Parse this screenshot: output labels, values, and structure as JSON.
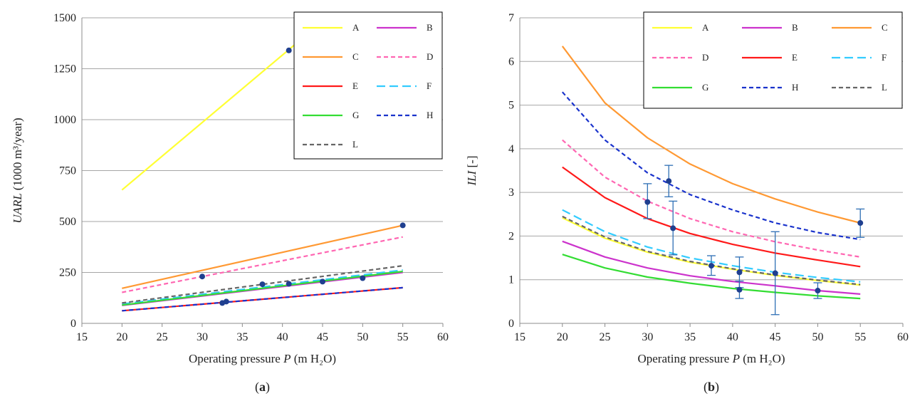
{
  "chart_data": [
    {
      "type": "line",
      "panel_label": "(a)",
      "panel_letter": "a",
      "xlabel_pre": "Operating pressure ",
      "xlabel_var": "P",
      "xlabel_post": " (m H₂O)",
      "ylabel_var": "UARL",
      "ylabel_post": "(1000 m³/year)",
      "xlim": [
        15,
        60
      ],
      "ylim": [
        0,
        1500
      ],
      "xticks": [
        15,
        20,
        25,
        30,
        35,
        40,
        45,
        50,
        55,
        60
      ],
      "xtick_labels": [
        "15",
        "20",
        "25",
        "30",
        "35",
        "40",
        "45",
        "50",
        "55",
        "60"
      ],
      "yticks": [
        0,
        250,
        500,
        750,
        1000,
        1250,
        1500
      ],
      "ytick_labels": [
        "0",
        "250",
        "500",
        "750",
        "1000",
        "1250",
        "1500"
      ],
      "grid": "horizontal",
      "legend": {
        "placement": "top-right",
        "columns": 2
      },
      "series": [
        {
          "name": "A",
          "color": "#ffff33",
          "dash": "solid",
          "x": [
            20,
            42.5
          ],
          "y": [
            655,
            1400
          ]
        },
        {
          "name": "B",
          "color": "#cc33cc",
          "dash": "solid",
          "x": [
            20,
            55
          ],
          "y": [
            88,
            250
          ]
        },
        {
          "name": "C",
          "color": "#ff9933",
          "dash": "solid",
          "x": [
            20,
            55
          ],
          "y": [
            172,
            481
          ]
        },
        {
          "name": "D",
          "color": "#ff66b2",
          "dash": "dashed",
          "x": [
            20,
            55
          ],
          "y": [
            152,
            424
          ]
        },
        {
          "name": "E",
          "color": "#ff1a1a",
          "dash": "solid",
          "x": [
            20,
            55
          ],
          "y": [
            62,
            175
          ]
        },
        {
          "name": "F",
          "color": "#33ccff",
          "dash": "longdash",
          "x": [
            20,
            55
          ],
          "y": [
            95,
            262
          ]
        },
        {
          "name": "G",
          "color": "#33dd33",
          "dash": "solid",
          "x": [
            20,
            55
          ],
          "y": [
            90,
            255
          ]
        },
        {
          "name": "H",
          "color": "#1a33cc",
          "dash": "dashed",
          "x": [
            20,
            55
          ],
          "y": [
            62,
            175
          ]
        },
        {
          "name": "L",
          "color": "#666666",
          "dash": "dashed",
          "x": [
            20,
            55
          ],
          "y": [
            100,
            283
          ]
        }
      ],
      "points": [
        {
          "x": 30,
          "y": 230
        },
        {
          "x": 32.5,
          "y": 100
        },
        {
          "x": 33,
          "y": 107
        },
        {
          "x": 37.5,
          "y": 192
        },
        {
          "x": 40.8,
          "y": 1340
        },
        {
          "x": 40.8,
          "y": 194
        },
        {
          "x": 45,
          "y": 205
        },
        {
          "x": 50,
          "y": 222
        },
        {
          "x": 55,
          "y": 481
        }
      ]
    },
    {
      "type": "line",
      "panel_label": "(b)",
      "panel_letter": "b",
      "xlabel_pre": "Operating pressure ",
      "xlabel_var": "P",
      "xlabel_post": " (m H₂O)",
      "ylabel_var": "ILI",
      "ylabel_post": "[-]",
      "xlim": [
        15,
        60
      ],
      "ylim": [
        0,
        7
      ],
      "xticks": [
        15,
        20,
        25,
        30,
        35,
        40,
        45,
        50,
        55,
        60
      ],
      "xtick_labels": [
        "15",
        "20",
        "25",
        "30",
        "35",
        "40",
        "45",
        "50",
        "55",
        "60"
      ],
      "yticks": [
        0,
        1,
        2,
        3,
        4,
        5,
        6,
        7
      ],
      "ytick_labels": [
        "0",
        "1",
        "2",
        "3",
        "4",
        "5",
        "6",
        "7"
      ],
      "grid": "horizontal",
      "legend": {
        "placement": "top-right",
        "columns": 3
      },
      "series": [
        {
          "name": "A",
          "color": "#ffff33",
          "dash": "solid",
          "x": [
            20,
            25,
            30,
            35,
            40,
            45,
            50,
            55
          ],
          "y": [
            2.42,
            1.95,
            1.63,
            1.4,
            1.24,
            1.1,
            0.98,
            0.88
          ]
        },
        {
          "name": "B",
          "color": "#cc33cc",
          "dash": "solid",
          "x": [
            20,
            25,
            30,
            35,
            40,
            45,
            50,
            55
          ],
          "y": [
            1.88,
            1.52,
            1.27,
            1.09,
            0.96,
            0.86,
            0.75,
            0.67
          ]
        },
        {
          "name": "C",
          "color": "#ff9933",
          "dash": "solid",
          "x": [
            20,
            25,
            30,
            35,
            40,
            45,
            50,
            55
          ],
          "y": [
            6.35,
            5.05,
            4.25,
            3.65,
            3.2,
            2.85,
            2.55,
            2.3
          ]
        },
        {
          "name": "D",
          "color": "#ff66b2",
          "dash": "dashed",
          "x": [
            20,
            25,
            30,
            35,
            40,
            45,
            50,
            55
          ],
          "y": [
            4.2,
            3.35,
            2.8,
            2.4,
            2.1,
            1.87,
            1.68,
            1.52
          ]
        },
        {
          "name": "E",
          "color": "#ff1a1a",
          "dash": "solid",
          "x": [
            20,
            25,
            30,
            35,
            40,
            45,
            50,
            55
          ],
          "y": [
            3.58,
            2.88,
            2.4,
            2.06,
            1.81,
            1.61,
            1.45,
            1.3
          ]
        },
        {
          "name": "F",
          "color": "#33ccff",
          "dash": "longdash",
          "x": [
            20,
            25,
            30,
            35,
            40,
            45,
            50,
            55
          ],
          "y": [
            2.6,
            2.1,
            1.75,
            1.5,
            1.32,
            1.17,
            1.05,
            0.95
          ]
        },
        {
          "name": "G",
          "color": "#33dd33",
          "dash": "solid",
          "x": [
            20,
            25,
            30,
            35,
            40,
            45,
            50,
            55
          ],
          "y": [
            1.58,
            1.27,
            1.06,
            0.92,
            0.8,
            0.71,
            0.63,
            0.57
          ]
        },
        {
          "name": "H",
          "color": "#1a33cc",
          "dash": "dashed",
          "x": [
            20,
            25,
            30,
            35,
            40,
            45,
            50,
            55
          ],
          "y": [
            5.3,
            4.2,
            3.45,
            2.95,
            2.6,
            2.3,
            2.08,
            1.92
          ]
        },
        {
          "name": "L",
          "color": "#666666",
          "dash": "dashed",
          "x": [
            20,
            25,
            30,
            35,
            40,
            45,
            50,
            55
          ],
          "y": [
            2.45,
            1.98,
            1.65,
            1.42,
            1.25,
            1.11,
            0.99,
            0.89
          ]
        }
      ],
      "points": [
        {
          "x": 30,
          "y": 2.78,
          "err_low": 2.4,
          "err_high": 3.2
        },
        {
          "x": 32.5,
          "y": 3.26,
          "err_low": 2.9,
          "err_high": 3.62
        },
        {
          "x": 33,
          "y": 2.18,
          "err_low": 1.57,
          "err_high": 2.8
        },
        {
          "x": 37.5,
          "y": 1.32,
          "err_low": 1.1,
          "err_high": 1.55
        },
        {
          "x": 40.8,
          "y": 1.17,
          "err_low": 0.82,
          "err_high": 1.52
        },
        {
          "x": 40.8,
          "y": 0.77,
          "err_low": 0.57,
          "err_high": 0.97
        },
        {
          "x": 45,
          "y": 1.15,
          "err_low": 0.2,
          "err_high": 2.1
        },
        {
          "x": 50,
          "y": 0.75,
          "err_low": 0.57,
          "err_high": 0.93
        },
        {
          "x": 55,
          "y": 2.3,
          "err_low": 1.97,
          "err_high": 2.62
        }
      ]
    }
  ]
}
